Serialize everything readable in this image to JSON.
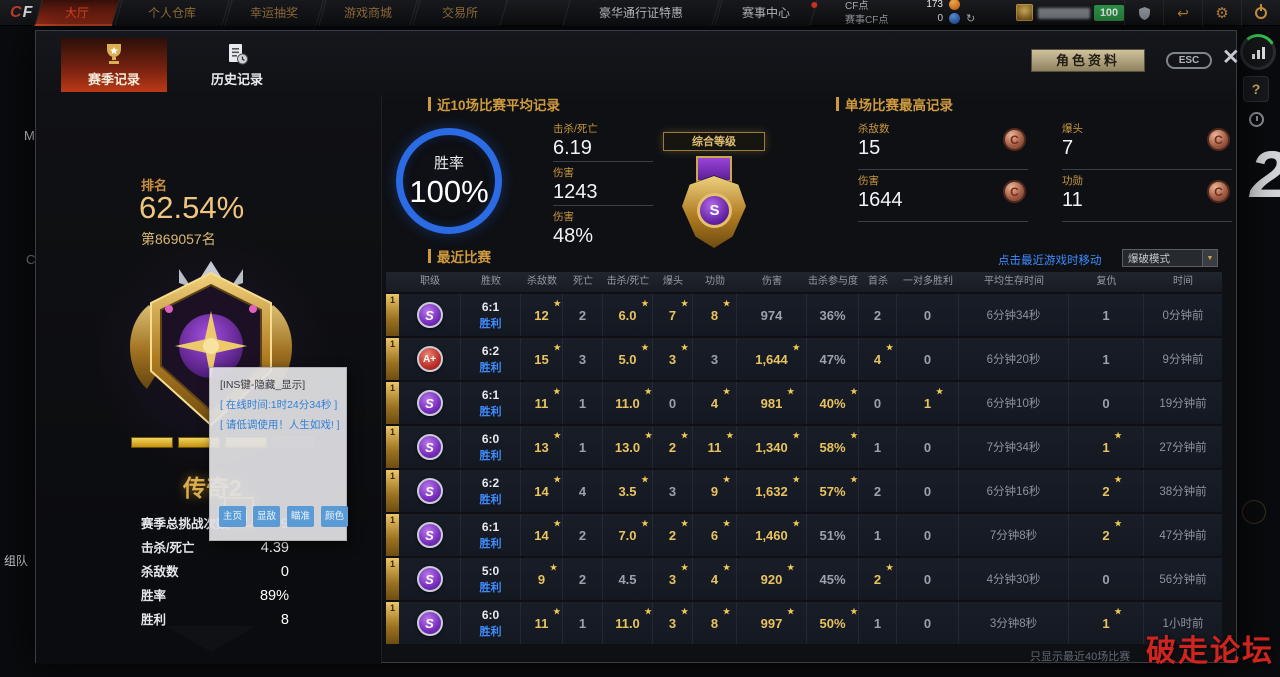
{
  "colors": {
    "accent_gold": "#cf9a3d",
    "value_gold": "#e9c35f",
    "link_blue": "#3f8cff",
    "win_rate_ring": "#2b6be4",
    "grade_purple": "#7a2fc0",
    "grade_red": "#c03028",
    "medal_bronze": "#a05c42",
    "active_tab_red": "#a5321a"
  },
  "top_nav": {
    "logo": "CF",
    "tabs": [
      {
        "label": "大厅",
        "active": true,
        "tone": "bronze"
      },
      {
        "label": "个人仓库",
        "tone": "bronze"
      },
      {
        "label": "幸运抽奖",
        "tone": "bronze"
      },
      {
        "label": "游戏商城",
        "tone": "bronze"
      },
      {
        "label": "交易所",
        "tone": "bronze"
      },
      {
        "label": "豪华通行证特惠",
        "tone": "light",
        "gap": true
      },
      {
        "label": "赛事中心",
        "tone": "light",
        "badge": true
      }
    ],
    "currencies": [
      {
        "label": "CF点",
        "value": "173",
        "coin": "orange"
      },
      {
        "label": "赛事CF点",
        "value": "0",
        "coin": "blue",
        "refresh": true
      }
    ],
    "hp": "100"
  },
  "window": {
    "tabs": [
      {
        "label": "赛季记录",
        "active": true
      },
      {
        "label": "历史记录"
      }
    ],
    "profile_button": "角色资料",
    "esc": "ESC"
  },
  "left_panel": {
    "rank_label": "排名",
    "rank_percent": "62.54%",
    "rank_place": "第869057名",
    "tier": "传奇2",
    "stats": [
      {
        "label": "赛季总挑战次数",
        "value": "9"
      },
      {
        "label": "击杀/死亡",
        "value": "4.39"
      },
      {
        "label": "杀敌数",
        "value": "0"
      },
      {
        "label": "胜率",
        "value": "89%"
      },
      {
        "label": "胜利",
        "value": "8"
      }
    ]
  },
  "overlay": {
    "title": "[INS键-隐藏_显示]",
    "lines": [
      "[ 在线时间:1时24分34秒 ]",
      "[ 请低调使用！人生如戏! ]"
    ],
    "buttons": [
      "主页",
      "显敌",
      "瞄准",
      "颜色"
    ]
  },
  "avg_panel": {
    "title": "近10场比赛平均记录",
    "winrate_label": "胜率",
    "winrate_value": "100%",
    "stats": [
      {
        "label": "击杀/死亡",
        "value": "6.19"
      },
      {
        "label": "伤害",
        "value": "1243"
      },
      {
        "label": "伤害",
        "value": "48%"
      }
    ]
  },
  "grade_panel": {
    "label": "综合等级",
    "grade": "S"
  },
  "best_panel": {
    "title": "单场比赛最高记录",
    "stats": [
      {
        "label": "杀敌数",
        "value": "15",
        "medal": "C"
      },
      {
        "label": "爆头",
        "value": "7",
        "medal": "C"
      },
      {
        "label": "伤害",
        "value": "1644",
        "medal": "C"
      },
      {
        "label": "功勋",
        "value": "11",
        "medal": "C"
      }
    ]
  },
  "recent_panel": {
    "title": "最近比赛",
    "hint": "点击最近游戏时移动",
    "mode": "爆破模式",
    "headers": [
      "职级",
      "胜败",
      "杀敌数",
      "死亡",
      "击杀/死亡",
      "爆头",
      "功勋",
      "伤害",
      "击杀参与度",
      "首杀",
      "一对多胜利",
      "平均生存时间",
      "复仇",
      "时间"
    ],
    "footnote": "只显示最近40场比赛",
    "rows": [
      {
        "rank": "1",
        "grade": "S",
        "score": "6:1",
        "result": "胜利",
        "cells": [
          {
            "v": "12",
            "hl": 1,
            "star": 1
          },
          {
            "v": "2"
          },
          {
            "v": "6.0",
            "hl": 1,
            "star": 1
          },
          {
            "v": "7",
            "hl": 1,
            "star": 1
          },
          {
            "v": "8",
            "hl": 1,
            "star": 1
          },
          {
            "v": "974"
          },
          {
            "v": "36%"
          },
          {
            "v": "2"
          },
          {
            "v": "0"
          },
          {
            "v": "6分钟34秒"
          },
          {
            "v": "1"
          },
          {
            "v": "0分钟前"
          }
        ]
      },
      {
        "rank": "1",
        "grade": "A+",
        "score": "6:2",
        "result": "胜利",
        "cells": [
          {
            "v": "15",
            "hl": 1,
            "star": 1
          },
          {
            "v": "3"
          },
          {
            "v": "5.0",
            "hl": 1,
            "star": 1
          },
          {
            "v": "3",
            "hl": 1,
            "star": 1
          },
          {
            "v": "3"
          },
          {
            "v": "1,644",
            "hl": 1,
            "star": 1
          },
          {
            "v": "47%"
          },
          {
            "v": "4",
            "hl": 1,
            "star": 1
          },
          {
            "v": "0"
          },
          {
            "v": "6分钟20秒"
          },
          {
            "v": "1"
          },
          {
            "v": "9分钟前"
          }
        ]
      },
      {
        "rank": "1",
        "grade": "S",
        "score": "6:1",
        "result": "胜利",
        "cells": [
          {
            "v": "11",
            "hl": 1,
            "star": 1
          },
          {
            "v": "1"
          },
          {
            "v": "11.0",
            "hl": 1,
            "star": 1
          },
          {
            "v": "0"
          },
          {
            "v": "4",
            "hl": 1,
            "star": 1
          },
          {
            "v": "981",
            "hl": 1,
            "star": 1
          },
          {
            "v": "40%",
            "hl": 1,
            "star": 1
          },
          {
            "v": "0"
          },
          {
            "v": "1",
            "hl": 1,
            "star": 1
          },
          {
            "v": "6分钟10秒"
          },
          {
            "v": "0"
          },
          {
            "v": "19分钟前"
          }
        ]
      },
      {
        "rank": "1",
        "grade": "S",
        "score": "6:0",
        "result": "胜利",
        "cells": [
          {
            "v": "13",
            "hl": 1,
            "star": 1
          },
          {
            "v": "1"
          },
          {
            "v": "13.0",
            "hl": 1,
            "star": 1
          },
          {
            "v": "2",
            "hl": 1,
            "star": 1
          },
          {
            "v": "11",
            "hl": 1,
            "star": 1
          },
          {
            "v": "1,340",
            "hl": 1,
            "star": 1
          },
          {
            "v": "58%",
            "hl": 1,
            "star": 1
          },
          {
            "v": "1"
          },
          {
            "v": "0"
          },
          {
            "v": "7分钟34秒"
          },
          {
            "v": "1",
            "hl": 1,
            "star": 1
          },
          {
            "v": "27分钟前"
          }
        ]
      },
      {
        "rank": "1",
        "grade": "S",
        "score": "6:2",
        "result": "胜利",
        "cells": [
          {
            "v": "14",
            "hl": 1,
            "star": 1
          },
          {
            "v": "4"
          },
          {
            "v": "3.5",
            "hl": 1,
            "star": 1
          },
          {
            "v": "3"
          },
          {
            "v": "9",
            "hl": 1,
            "star": 1
          },
          {
            "v": "1,632",
            "hl": 1,
            "star": 1
          },
          {
            "v": "57%",
            "hl": 1,
            "star": 1
          },
          {
            "v": "2"
          },
          {
            "v": "0"
          },
          {
            "v": "6分钟16秒"
          },
          {
            "v": "2",
            "hl": 1,
            "star": 1
          },
          {
            "v": "38分钟前"
          }
        ]
      },
      {
        "rank": "1",
        "grade": "S",
        "score": "6:1",
        "result": "胜利",
        "cells": [
          {
            "v": "14",
            "hl": 1,
            "star": 1
          },
          {
            "v": "2"
          },
          {
            "v": "7.0",
            "hl": 1,
            "star": 1
          },
          {
            "v": "2",
            "hl": 1,
            "star": 1
          },
          {
            "v": "6",
            "hl": 1,
            "star": 1
          },
          {
            "v": "1,460",
            "hl": 1,
            "star": 1
          },
          {
            "v": "51%"
          },
          {
            "v": "1"
          },
          {
            "v": "0"
          },
          {
            "v": "7分钟8秒"
          },
          {
            "v": "2",
            "hl": 1,
            "star": 1
          },
          {
            "v": "47分钟前"
          }
        ]
      },
      {
        "rank": "1",
        "grade": "S",
        "score": "5:0",
        "result": "胜利",
        "cells": [
          {
            "v": "9",
            "hl": 1,
            "star": 1
          },
          {
            "v": "2"
          },
          {
            "v": "4.5"
          },
          {
            "v": "3",
            "hl": 1,
            "star": 1
          },
          {
            "v": "4",
            "hl": 1,
            "star": 1
          },
          {
            "v": "920",
            "hl": 1,
            "star": 1
          },
          {
            "v": "45%"
          },
          {
            "v": "2",
            "hl": 1,
            "star": 1
          },
          {
            "v": "0"
          },
          {
            "v": "4分钟30秒"
          },
          {
            "v": "0"
          },
          {
            "v": "56分钟前"
          }
        ]
      },
      {
        "rank": "1",
        "grade": "S",
        "score": "6:0",
        "result": "胜利",
        "cells": [
          {
            "v": "11",
            "hl": 1,
            "star": 1
          },
          {
            "v": "1"
          },
          {
            "v": "11.0",
            "hl": 1,
            "star": 1
          },
          {
            "v": "3",
            "hl": 1,
            "star": 1
          },
          {
            "v": "8",
            "hl": 1,
            "star": 1
          },
          {
            "v": "997",
            "hl": 1,
            "star": 1
          },
          {
            "v": "50%",
            "hl": 1,
            "star": 1
          },
          {
            "v": "1"
          },
          {
            "v": "0"
          },
          {
            "v": "3分钟8秒"
          },
          {
            "v": "1",
            "hl": 1,
            "star": 1
          },
          {
            "v": "1小时前"
          }
        ]
      }
    ]
  },
  "edges": {
    "watermark": "破走论坛",
    "help": "?",
    "big_number": "2",
    "left_letter_top": "M",
    "left_letter_mid": "C",
    "left_bottom_label": "组队"
  }
}
